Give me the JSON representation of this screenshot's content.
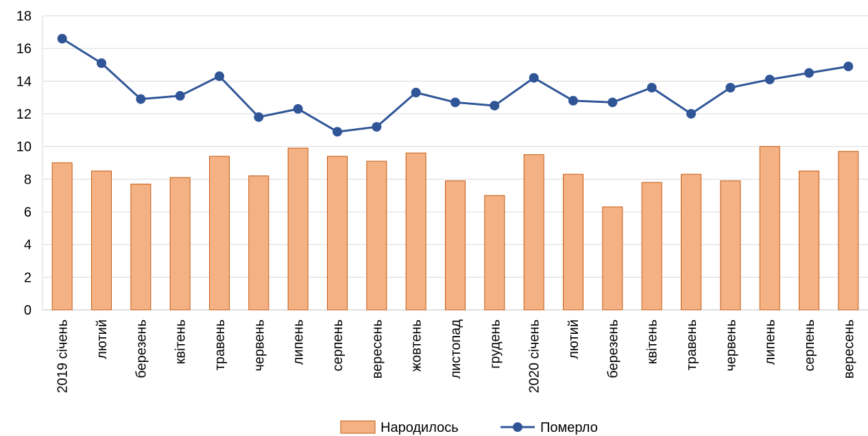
{
  "chart_data": {
    "type": "bar",
    "categories": [
      "2019  січень",
      "лютий",
      "березень",
      "квітень",
      "травень",
      "червень",
      "липень",
      "серпень",
      "вересень",
      "жовтень",
      "листопад",
      "грудень",
      "2020 січень",
      "лютий",
      "березень",
      "квітень",
      "травень",
      "червень",
      "липень",
      "серпень",
      "вересень"
    ],
    "series": [
      {
        "name": "Народилось",
        "type": "bar",
        "color": "#F4B183",
        "stroke": "#C55A11",
        "values": [
          9.0,
          8.5,
          7.7,
          8.1,
          9.4,
          8.2,
          9.9,
          9.4,
          9.1,
          9.6,
          7.9,
          7.0,
          9.5,
          8.3,
          6.3,
          7.8,
          8.3,
          7.9,
          10.0,
          8.5,
          9.7
        ]
      },
      {
        "name": "Померло",
        "type": "line",
        "color": "#2F5597",
        "values": [
          16.6,
          15.1,
          12.9,
          13.1,
          14.3,
          11.8,
          12.3,
          10.9,
          11.2,
          13.3,
          12.7,
          12.5,
          14.2,
          12.8,
          12.7,
          13.6,
          12.0,
          13.6,
          14.1,
          14.5,
          14.9
        ]
      }
    ],
    "ylim": [
      0,
      18
    ],
    "yticks": [
      0,
      2,
      4,
      6,
      8,
      10,
      12,
      14,
      16,
      18
    ],
    "grid": true,
    "legend": "bottom-center",
    "title": "",
    "xlabel": "",
    "ylabel": ""
  }
}
